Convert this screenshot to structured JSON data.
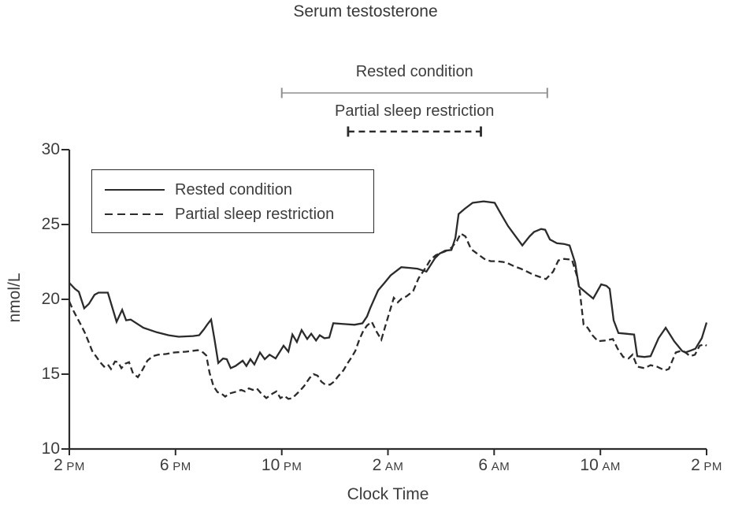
{
  "chart_data": {
    "type": "line",
    "title": "Serum testosterone",
    "xlabel": "Clock Time",
    "ylabel": "nmol/L",
    "x_axis": {
      "description_hours_after_2pm": [
        0,
        24
      ],
      "ticks": [
        {
          "hour": 0,
          "num": "2",
          "mer": "PM"
        },
        {
          "hour": 4,
          "num": "6",
          "mer": "PM"
        },
        {
          "hour": 8,
          "num": "10",
          "mer": "PM"
        },
        {
          "hour": 12,
          "num": "2",
          "mer": "AM"
        },
        {
          "hour": 16,
          "num": "6",
          "mer": "AM"
        },
        {
          "hour": 20,
          "num": "10",
          "mer": "AM"
        },
        {
          "hour": 24,
          "num": "2",
          "mer": "PM"
        }
      ]
    },
    "y_axis": {
      "range": [
        10,
        30
      ],
      "ticks": [
        10,
        15,
        20,
        25,
        30
      ],
      "grid": false
    },
    "legend": {
      "position": "upper-left-box",
      "items": [
        {
          "label": "Rested condition",
          "style": "solid"
        },
        {
          "label": "Partial sleep restriction",
          "style": "dashed"
        }
      ]
    },
    "annotations": [
      {
        "label": "Rested condition",
        "style": "solid",
        "color": "#8f8f8f",
        "start_hour": 8,
        "end_hour": 18
      },
      {
        "label": "Partial sleep restriction",
        "style": "dashed",
        "color": "#2b2b2b",
        "start_hour": 10.5,
        "end_hour": 15.5
      }
    ],
    "series": [
      {
        "name": "Rested condition",
        "style": "solid",
        "points": [
          [
            0,
            21.1
          ],
          [
            0.21,
            20.7
          ],
          [
            0.36,
            20.5
          ],
          [
            0.56,
            19.4
          ],
          [
            0.74,
            19.7
          ],
          [
            0.95,
            20.3
          ],
          [
            1.1,
            20.45
          ],
          [
            1.45,
            20.45
          ],
          [
            1.78,
            18.5
          ],
          [
            1.99,
            19.3
          ],
          [
            2.14,
            18.6
          ],
          [
            2.31,
            18.65
          ],
          [
            2.79,
            18.1
          ],
          [
            3.29,
            17.8
          ],
          [
            3.74,
            17.6
          ],
          [
            4.12,
            17.5
          ],
          [
            4.66,
            17.55
          ],
          [
            4.89,
            17.6
          ],
          [
            5.07,
            18.0
          ],
          [
            5.19,
            18.3
          ],
          [
            5.34,
            18.65
          ],
          [
            5.47,
            17.3
          ],
          [
            5.61,
            15.75
          ],
          [
            5.79,
            16.05
          ],
          [
            5.93,
            16.0
          ],
          [
            6.08,
            15.4
          ],
          [
            6.26,
            15.55
          ],
          [
            6.53,
            15.9
          ],
          [
            6.67,
            15.55
          ],
          [
            6.82,
            16.0
          ],
          [
            6.97,
            15.65
          ],
          [
            7.18,
            16.45
          ],
          [
            7.36,
            16.0
          ],
          [
            7.54,
            16.3
          ],
          [
            7.77,
            16.05
          ],
          [
            8.07,
            16.9
          ],
          [
            8.25,
            16.5
          ],
          [
            8.4,
            17.65
          ],
          [
            8.57,
            17.15
          ],
          [
            8.75,
            17.95
          ],
          [
            8.96,
            17.35
          ],
          [
            9.11,
            17.7
          ],
          [
            9.29,
            17.25
          ],
          [
            9.43,
            17.6
          ],
          [
            9.61,
            17.4
          ],
          [
            9.79,
            17.45
          ],
          [
            9.94,
            18.4
          ],
          [
            10.35,
            18.35
          ],
          [
            10.74,
            18.3
          ],
          [
            11.04,
            18.4
          ],
          [
            11.21,
            18.85
          ],
          [
            11.33,
            19.4
          ],
          [
            11.63,
            20.6
          ],
          [
            11.87,
            21.1
          ],
          [
            12.1,
            21.6
          ],
          [
            12.5,
            22.15
          ],
          [
            12.82,
            22.1
          ],
          [
            13.11,
            22.05
          ],
          [
            13.45,
            21.85
          ],
          [
            13.77,
            22.75
          ],
          [
            13.94,
            23.05
          ],
          [
            14.15,
            23.25
          ],
          [
            14.39,
            23.3
          ],
          [
            14.54,
            24.1
          ],
          [
            14.66,
            25.7
          ],
          [
            14.89,
            26.05
          ],
          [
            15.19,
            26.45
          ],
          [
            15.6,
            26.55
          ],
          [
            16.02,
            26.45
          ],
          [
            16.29,
            25.6
          ],
          [
            16.52,
            24.9
          ],
          [
            16.73,
            24.4
          ],
          [
            17.06,
            23.6
          ],
          [
            17.33,
            24.2
          ],
          [
            17.5,
            24.5
          ],
          [
            17.77,
            24.7
          ],
          [
            17.92,
            24.65
          ],
          [
            18.1,
            24.0
          ],
          [
            18.36,
            23.75
          ],
          [
            18.63,
            23.7
          ],
          [
            18.84,
            23.6
          ],
          [
            19.05,
            22.45
          ],
          [
            19.19,
            20.85
          ],
          [
            19.49,
            20.4
          ],
          [
            19.73,
            20.05
          ],
          [
            20.03,
            21.0
          ],
          [
            20.23,
            20.9
          ],
          [
            20.35,
            20.7
          ],
          [
            20.5,
            18.6
          ],
          [
            20.68,
            17.75
          ],
          [
            20.97,
            17.7
          ],
          [
            21.27,
            17.65
          ],
          [
            21.39,
            16.2
          ],
          [
            21.66,
            16.15
          ],
          [
            21.89,
            16.2
          ],
          [
            22.19,
            17.4
          ],
          [
            22.46,
            18.1
          ],
          [
            22.78,
            17.2
          ],
          [
            23.08,
            16.55
          ],
          [
            23.2,
            16.45
          ],
          [
            23.44,
            16.6
          ],
          [
            23.58,
            16.7
          ],
          [
            23.82,
            17.4
          ],
          [
            24,
            18.45
          ]
        ]
      },
      {
        "name": "Partial sleep restriction",
        "style": "dashed",
        "points": [
          [
            0,
            19.85
          ],
          [
            0.15,
            19.25
          ],
          [
            0.3,
            18.75
          ],
          [
            0.45,
            18.25
          ],
          [
            0.59,
            17.75
          ],
          [
            0.74,
            17.1
          ],
          [
            0.86,
            16.55
          ],
          [
            1.04,
            16.1
          ],
          [
            1.16,
            15.8
          ],
          [
            1.31,
            15.5
          ],
          [
            1.45,
            15.65
          ],
          [
            1.57,
            15.35
          ],
          [
            1.72,
            15.85
          ],
          [
            1.84,
            15.8
          ],
          [
            1.96,
            15.4
          ],
          [
            2.11,
            15.7
          ],
          [
            2.25,
            15.8
          ],
          [
            2.4,
            15.05
          ],
          [
            2.58,
            14.8
          ],
          [
            2.76,
            15.3
          ],
          [
            2.94,
            15.9
          ],
          [
            3.14,
            16.2
          ],
          [
            3.35,
            16.3
          ],
          [
            3.65,
            16.35
          ],
          [
            3.95,
            16.45
          ],
          [
            4.39,
            16.5
          ],
          [
            4.84,
            16.6
          ],
          [
            5.04,
            16.45
          ],
          [
            5.16,
            16.25
          ],
          [
            5.28,
            15.1
          ],
          [
            5.43,
            14.2
          ],
          [
            5.58,
            13.8
          ],
          [
            5.73,
            13.7
          ],
          [
            5.87,
            13.5
          ],
          [
            6.02,
            13.7
          ],
          [
            6.32,
            13.85
          ],
          [
            6.47,
            13.95
          ],
          [
            6.62,
            13.85
          ],
          [
            6.76,
            14.05
          ],
          [
            6.91,
            13.95
          ],
          [
            7.06,
            14.05
          ],
          [
            7.21,
            13.75
          ],
          [
            7.42,
            13.4
          ],
          [
            7.65,
            13.7
          ],
          [
            7.8,
            13.85
          ],
          [
            7.95,
            13.4
          ],
          [
            8.1,
            13.55
          ],
          [
            8.25,
            13.35
          ],
          [
            8.4,
            13.4
          ],
          [
            8.69,
            13.9
          ],
          [
            8.84,
            14.2
          ],
          [
            9.05,
            14.75
          ],
          [
            9.2,
            15.0
          ],
          [
            9.35,
            14.9
          ],
          [
            9.49,
            14.5
          ],
          [
            9.64,
            14.3
          ],
          [
            9.82,
            14.3
          ],
          [
            9.97,
            14.5
          ],
          [
            10.12,
            14.85
          ],
          [
            10.32,
            15.25
          ],
          [
            10.47,
            15.7
          ],
          [
            10.62,
            16.1
          ],
          [
            10.77,
            16.55
          ],
          [
            10.92,
            17.3
          ],
          [
            11.07,
            17.9
          ],
          [
            11.21,
            18.25
          ],
          [
            11.39,
            18.5
          ],
          [
            11.57,
            17.85
          ],
          [
            11.75,
            17.3
          ],
          [
            11.9,
            18.2
          ],
          [
            12.22,
            20.1
          ],
          [
            12.37,
            19.8
          ],
          [
            12.52,
            20.05
          ],
          [
            12.7,
            20.2
          ],
          [
            12.95,
            20.55
          ],
          [
            13.15,
            21.4
          ],
          [
            13.45,
            22.2
          ],
          [
            13.6,
            22.65
          ],
          [
            13.8,
            22.95
          ],
          [
            14.0,
            23.1
          ],
          [
            14.15,
            23.2
          ],
          [
            14.39,
            23.45
          ],
          [
            14.6,
            23.9
          ],
          [
            14.74,
            24.4
          ],
          [
            14.92,
            24.2
          ],
          [
            15.13,
            23.35
          ],
          [
            15.4,
            23.0
          ],
          [
            15.63,
            22.7
          ],
          [
            15.87,
            22.55
          ],
          [
            16.08,
            22.55
          ],
          [
            16.32,
            22.5
          ],
          [
            16.47,
            22.45
          ],
          [
            16.76,
            22.2
          ],
          [
            17.0,
            22.05
          ],
          [
            17.24,
            21.85
          ],
          [
            17.47,
            21.65
          ],
          [
            17.71,
            21.5
          ],
          [
            17.95,
            21.35
          ],
          [
            18.22,
            21.85
          ],
          [
            18.42,
            22.6
          ],
          [
            18.63,
            22.7
          ],
          [
            18.93,
            22.65
          ],
          [
            19.13,
            21.5
          ],
          [
            19.22,
            20.6
          ],
          [
            19.37,
            18.3
          ],
          [
            19.52,
            18.1
          ],
          [
            19.7,
            17.6
          ],
          [
            19.91,
            17.2
          ],
          [
            20.17,
            17.25
          ],
          [
            20.47,
            17.35
          ],
          [
            20.65,
            16.7
          ],
          [
            20.86,
            16.15
          ],
          [
            21.06,
            16.05
          ],
          [
            21.21,
            16.3
          ],
          [
            21.39,
            15.5
          ],
          [
            21.66,
            15.4
          ],
          [
            21.89,
            15.6
          ],
          [
            22.13,
            15.5
          ],
          [
            22.43,
            15.25
          ],
          [
            22.58,
            15.35
          ],
          [
            22.84,
            16.45
          ],
          [
            23.02,
            16.55
          ],
          [
            23.17,
            16.5
          ],
          [
            23.38,
            16.2
          ],
          [
            23.56,
            16.3
          ],
          [
            23.74,
            16.9
          ],
          [
            23.91,
            17.0
          ],
          [
            24,
            16.9
          ]
        ]
      }
    ]
  },
  "colors": {
    "line": "#2b2b2b",
    "text": "#3d3d3d",
    "annotation_gray": "#8f8f8f",
    "background": "#ffffff"
  }
}
